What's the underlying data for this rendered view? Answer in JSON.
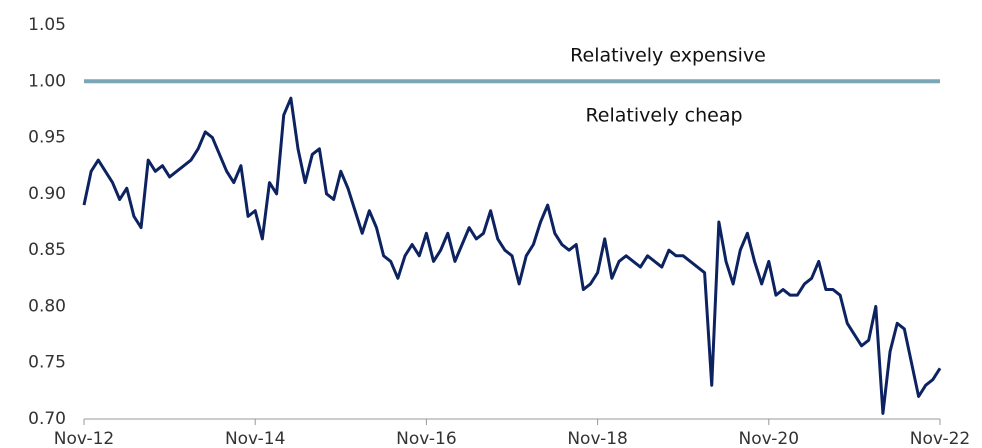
{
  "chart_data": {
    "type": "line",
    "x": [
      "Nov-12",
      "Dec-12",
      "Jan-13",
      "Feb-13",
      "Mar-13",
      "Apr-13",
      "May-13",
      "Jun-13",
      "Jul-13",
      "Aug-13",
      "Sep-13",
      "Oct-13",
      "Nov-13",
      "Dec-13",
      "Jan-14",
      "Feb-14",
      "Mar-14",
      "Apr-14",
      "May-14",
      "Jun-14",
      "Jul-14",
      "Aug-14",
      "Sep-14",
      "Oct-14",
      "Nov-14",
      "Dec-14",
      "Jan-15",
      "Feb-15",
      "Mar-15",
      "Apr-15",
      "May-15",
      "Jun-15",
      "Jul-15",
      "Aug-15",
      "Sep-15",
      "Oct-15",
      "Nov-15",
      "Dec-15",
      "Jan-16",
      "Feb-16",
      "Mar-16",
      "Apr-16",
      "May-16",
      "Jun-16",
      "Jul-16",
      "Aug-16",
      "Sep-16",
      "Oct-16",
      "Nov-16",
      "Dec-16",
      "Jan-17",
      "Feb-17",
      "Mar-17",
      "Apr-17",
      "May-17",
      "Jun-17",
      "Jul-17",
      "Aug-17",
      "Sep-17",
      "Oct-17",
      "Nov-17",
      "Dec-17",
      "Jan-18",
      "Feb-18",
      "Mar-18",
      "Apr-18",
      "May-18",
      "Jun-18",
      "Jul-18",
      "Aug-18",
      "Sep-18",
      "Oct-18",
      "Nov-18",
      "Dec-18",
      "Jan-19",
      "Feb-19",
      "Mar-19",
      "Apr-19",
      "May-19",
      "Jun-19",
      "Jul-19",
      "Aug-19",
      "Sep-19",
      "Oct-19",
      "Nov-19",
      "Dec-19",
      "Jan-20",
      "Feb-20",
      "Mar-20",
      "Apr-20",
      "May-20",
      "Jun-20",
      "Jul-20",
      "Aug-20",
      "Sep-20",
      "Oct-20",
      "Nov-20",
      "Dec-20",
      "Jan-21",
      "Feb-21",
      "Mar-21",
      "Apr-21",
      "May-21",
      "Jun-21",
      "Jul-21",
      "Aug-21",
      "Sep-21",
      "Oct-21",
      "Nov-21",
      "Dec-21",
      "Jan-22",
      "Feb-22",
      "Mar-22",
      "Apr-22",
      "May-22",
      "Jun-22",
      "Jul-22",
      "Aug-22",
      "Sep-22",
      "Oct-22",
      "Nov-22"
    ],
    "series": [
      {
        "color": "#0d2361",
        "values": [
          0.89,
          0.92,
          0.93,
          0.92,
          0.91,
          0.895,
          0.905,
          0.88,
          0.87,
          0.93,
          0.92,
          0.925,
          0.915,
          0.92,
          0.925,
          0.93,
          0.94,
          0.955,
          0.95,
          0.935,
          0.92,
          0.91,
          0.925,
          0.88,
          0.885,
          0.86,
          0.91,
          0.9,
          0.97,
          0.985,
          0.94,
          0.91,
          0.935,
          0.94,
          0.9,
          0.895,
          0.92,
          0.905,
          0.885,
          0.865,
          0.885,
          0.87,
          0.845,
          0.84,
          0.825,
          0.845,
          0.855,
          0.845,
          0.865,
          0.84,
          0.85,
          0.865,
          0.84,
          0.855,
          0.87,
          0.86,
          0.865,
          0.885,
          0.86,
          0.85,
          0.845,
          0.82,
          0.845,
          0.855,
          0.875,
          0.89,
          0.865,
          0.855,
          0.85,
          0.855,
          0.815,
          0.82,
          0.83,
          0.86,
          0.825,
          0.84,
          0.845,
          0.84,
          0.835,
          0.845,
          0.84,
          0.835,
          0.85,
          0.845,
          0.845,
          0.84,
          0.835,
          0.83,
          0.73,
          0.875,
          0.84,
          0.82,
          0.85,
          0.865,
          0.84,
          0.82,
          0.84,
          0.81,
          0.815,
          0.81,
          0.81,
          0.82,
          0.825,
          0.84,
          0.815,
          0.815,
          0.81,
          0.785,
          0.775,
          0.765,
          0.77,
          0.8,
          0.705,
          0.76,
          0.785,
          0.78,
          0.75,
          0.72,
          0.73,
          0.735,
          0.745
        ]
      }
    ],
    "xticks": [
      "Nov-12",
      "Nov-14",
      "Nov-16",
      "Nov-18",
      "Nov-20",
      "Nov-22"
    ],
    "ylim": [
      0.7,
      1.05
    ],
    "yticks": [
      {
        "value": 0.7,
        "label": "0.70"
      },
      {
        "value": 0.75,
        "label": "0.75"
      },
      {
        "value": 0.8,
        "label": "0.80"
      },
      {
        "value": 0.85,
        "label": "0.85"
      },
      {
        "value": 0.9,
        "label": "0.90"
      },
      {
        "value": 0.95,
        "label": "0.95"
      },
      {
        "value": 1.0,
        "label": "1.00"
      },
      {
        "value": 1.05,
        "label": "1.05"
      }
    ],
    "reference_line": {
      "value": 1.0,
      "color": "#7ba6b6"
    },
    "annotations": [
      "Relatively expensive",
      "Relatively cheap"
    ],
    "grid": false
  }
}
